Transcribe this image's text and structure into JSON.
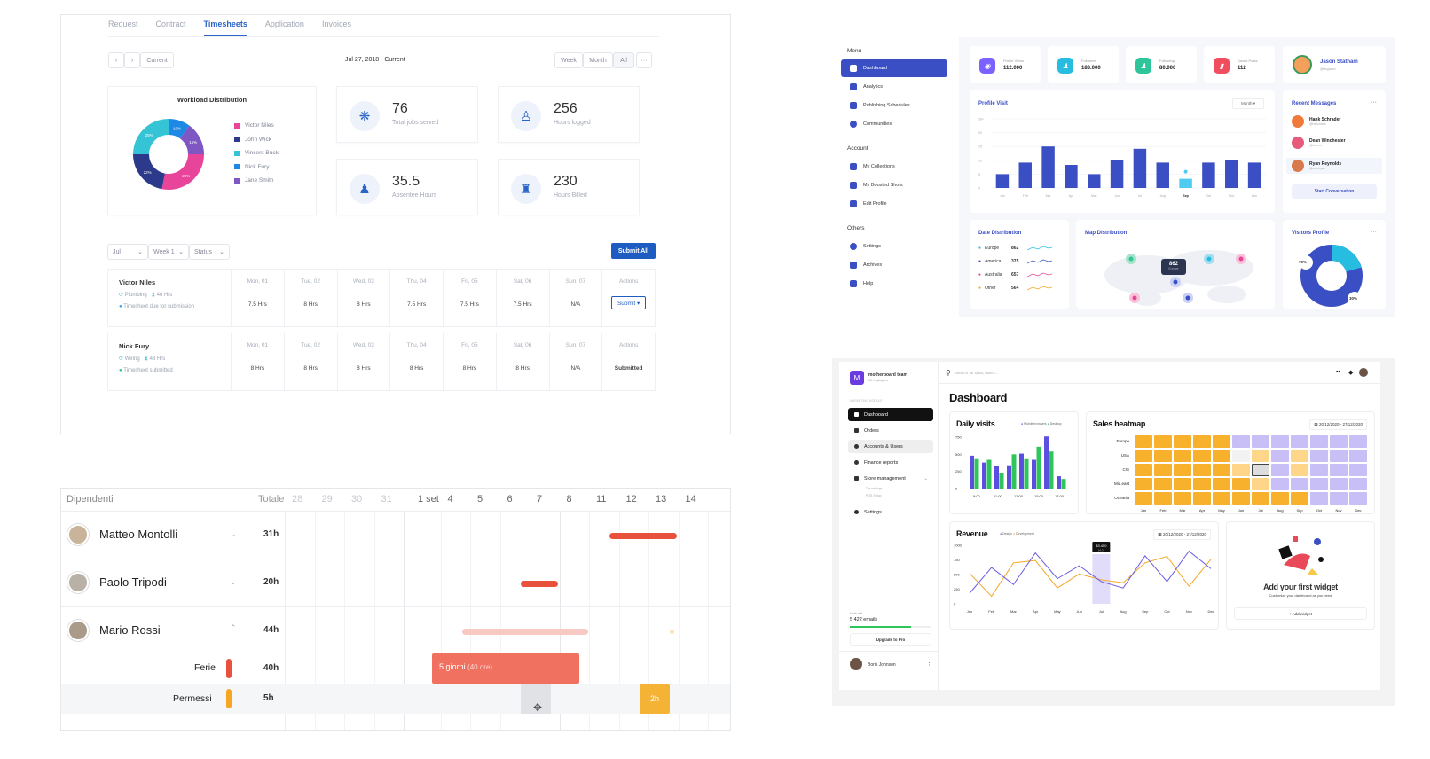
{
  "timesheet": {
    "tabs": [
      "Request",
      "Contract",
      "Timesheets",
      "Application",
      "Invoices"
    ],
    "active_tab": "Timesheets",
    "nav": {
      "current_label": "Current",
      "date_range": "Jul 27, 2018 - Current"
    },
    "views": [
      "Week",
      "Month",
      "All",
      "···"
    ],
    "workload": {
      "title": "Workload Distribution",
      "people": [
        "Victor Niles",
        "John Wick",
        "Vincent Buck",
        "Nick Fury",
        "Jane Smith"
      ],
      "colors": [
        "#e8459a",
        "#2d3a8c",
        "#35c4d6",
        "#1e88e5",
        "#7e57c2"
      ],
      "shares": [
        28,
        22,
        25,
        10,
        15
      ],
      "labels": [
        "28%",
        "22%",
        "25%",
        "10%",
        "15%"
      ]
    },
    "stats": [
      {
        "value": "76",
        "label": "Total jobs served",
        "icon": "team-icon"
      },
      {
        "value": "256",
        "label": "Hours logged",
        "icon": "clock-person-icon"
      },
      {
        "value": "35.5",
        "label": "Absentee Hours",
        "icon": "absent-person-icon"
      },
      {
        "value": "230",
        "label": "Hours Billed",
        "icon": "billing-icon"
      }
    ],
    "filters": [
      "Jul",
      "Week 1",
      "Status"
    ],
    "submit_all": "Submit All",
    "days": [
      "Mon, 01",
      "Tue, 02",
      "Wed, 03",
      "Thu, 04",
      "Fri, 05",
      "Sat, 06",
      "Sun, 07",
      "Actions"
    ],
    "rows": [
      {
        "name": "Victor Niles",
        "job": "Plumbing",
        "hours": "46 Hrs",
        "status": "Timesheet due for submission",
        "values": [
          "7.5 Hrs",
          "8 Hrs",
          "8 Hrs",
          "7.5 Hrs",
          "7.5 Hrs",
          "7.5 Hrs",
          "N/A"
        ],
        "action": "Submit ▾"
      },
      {
        "name": "Nick Fury",
        "job": "Wiring",
        "hours": "48 Hrs",
        "status": "Timesheet submitted",
        "values": [
          "8 Hrs",
          "8 Hrs",
          "8 Hrs",
          "8 Hrs",
          "8 Hrs",
          "8 Hrs",
          "N/A"
        ],
        "action": "Submitted"
      }
    ]
  },
  "social": {
    "menu_title": "Menu",
    "menu": [
      "Dashboard",
      "Analytics",
      "Publishing Schedules",
      "Communities"
    ],
    "account_title": "Account",
    "account": [
      "My Collections",
      "My Boosted Shots",
      "Edit Profile"
    ],
    "others_title": "Others",
    "others": [
      "Settings",
      "Archives",
      "Help"
    ],
    "stats": [
      {
        "label": "Profile Views",
        "value": "112.000",
        "color": "#7b61ff"
      },
      {
        "label": "Followers",
        "value": "183.000",
        "color": "#27bde0"
      },
      {
        "label": "Following",
        "value": "80.000",
        "color": "#2ec59a"
      },
      {
        "label": "Saved Posts",
        "value": "112",
        "color": "#f04e5e"
      }
    ],
    "profile": {
      "name": "Jason Statham",
      "handle": "@heyjason"
    },
    "profile_visit": {
      "title": "Profile Visit",
      "period": "Month ▾",
      "yticks": [
        "30+",
        "20",
        "15",
        "10",
        "5",
        "0"
      ],
      "months": [
        "Jan",
        "Feb",
        "Mar",
        "Apr",
        "May",
        "Jun",
        "Jul",
        "Aug",
        "Sep",
        "Oct",
        "Nov",
        "Dec"
      ],
      "values": [
        6,
        11,
        18,
        10,
        6,
        12,
        17,
        11,
        4,
        11,
        12,
        11
      ]
    },
    "recent": {
      "title": "Recent Messages",
      "more": "···",
      "people": [
        {
          "name": "Hank Schrader",
          "sub": "@hellohank"
        },
        {
          "name": "Dean Winchester",
          "sub": "@hideen"
        },
        {
          "name": "Ryan Reynolds",
          "sub": "@meetryan"
        }
      ],
      "cta": "Start Conversation"
    },
    "date_dist": {
      "title": "Date Distribution",
      "items": [
        {
          "name": "Europe",
          "value": "862"
        },
        {
          "name": "America",
          "value": "375"
        },
        {
          "name": "Australia",
          "value": "657"
        },
        {
          "name": "Other",
          "value": "564"
        }
      ]
    },
    "map": {
      "title": "Map Distribution",
      "badge_value": "862",
      "badge_label": "Europe"
    },
    "visitors": {
      "title": "Visitors Profile",
      "more": "···",
      "a": "70%",
      "b": "30%"
    }
  },
  "gantt": {
    "header": {
      "title": "Dipendenti",
      "total": "Totale",
      "days": [
        "28",
        "29",
        "30",
        "31",
        "1 set",
        "4",
        "5",
        "6",
        "7",
        "8",
        "11",
        "12",
        "13",
        "14"
      ]
    },
    "people": [
      {
        "name": "Matteo Montolli",
        "total": "31h"
      },
      {
        "name": "Paolo Tripodi",
        "total": "20h"
      },
      {
        "name": "Mario Rossi",
        "total": "44h"
      }
    ],
    "sub": [
      {
        "name": "Ferie",
        "total": "40h",
        "color": "#e8513d"
      },
      {
        "name": "Permessi",
        "total": "5h",
        "color": "#f5a623"
      }
    ],
    "block_label": "5 giorni",
    "block_sub": "(40 ore)",
    "small_label": "2h"
  },
  "motherboard": {
    "team": {
      "name": "motherboard team",
      "sub": "10 employees",
      "initial": "M"
    },
    "search": "Search for data, users...",
    "module": "MARKETING MODULE",
    "nav": [
      "Dashboard",
      "Orders",
      "Accounts & Users",
      "Finance reports",
      "Store management"
    ],
    "subnav": [
      "Tax settings",
      "POS Setup"
    ],
    "settings": "Settings",
    "emails": {
      "label": "Mails left",
      "value": "5 422 emails",
      "pct": 0.75
    },
    "upgrade": "Upgrade to Pro",
    "user": "Boris Johnson",
    "title": "Dashboard",
    "daily": {
      "title": "Daily visits",
      "legend": [
        "Mobile browsers",
        "Desktop"
      ],
      "yticks": [
        "750",
        "500",
        "250",
        "0"
      ],
      "hours": [
        "9:00",
        "11:00",
        "13:00",
        "15:00",
        "17:00"
      ],
      "mobile": [
        480,
        380,
        330,
        340,
        510,
        420,
        760,
        180
      ],
      "desktop": [
        430,
        420,
        230,
        500,
        430,
        610,
        540,
        140
      ]
    },
    "heatmap": {
      "title": "Sales heatmap",
      "range": "20/12/2020 - 27/12/2020",
      "rows": [
        "Europe",
        "USA",
        "CIS",
        "Mid.east",
        "Oceania"
      ],
      "months": [
        "Jan",
        "Feb",
        "Mar",
        "Apr",
        "May",
        "Jun",
        "Jul",
        "Aug",
        "Sep",
        "Oct",
        "Nov",
        "Dec"
      ]
    },
    "revenue": {
      "title": "Revenue",
      "legend": [
        "Design",
        "Development"
      ],
      "range": "20/12/2020 - 27/12/2020",
      "yticks": [
        "1000",
        "750",
        "500",
        "250",
        "0"
      ],
      "months": [
        "Jan",
        "Feb",
        "Mar",
        "Apr",
        "May",
        "Jun",
        "Jul",
        "Aug",
        "Sep",
        "Oct",
        "Nov",
        "Dec"
      ],
      "design": [
        180,
        620,
        330,
        870,
        430,
        650,
        380,
        270,
        820,
        380,
        900,
        600
      ],
      "development": [
        520,
        130,
        700,
        740,
        270,
        510,
        410,
        360,
        700,
        810,
        300,
        760
      ],
      "tooltip": "$3.450",
      "tooltip_sub": "24.07"
    },
    "widget": {
      "title": "Add your first widget",
      "sub": "Customize your dashboard as you need",
      "cta": "+ Add widget"
    }
  }
}
